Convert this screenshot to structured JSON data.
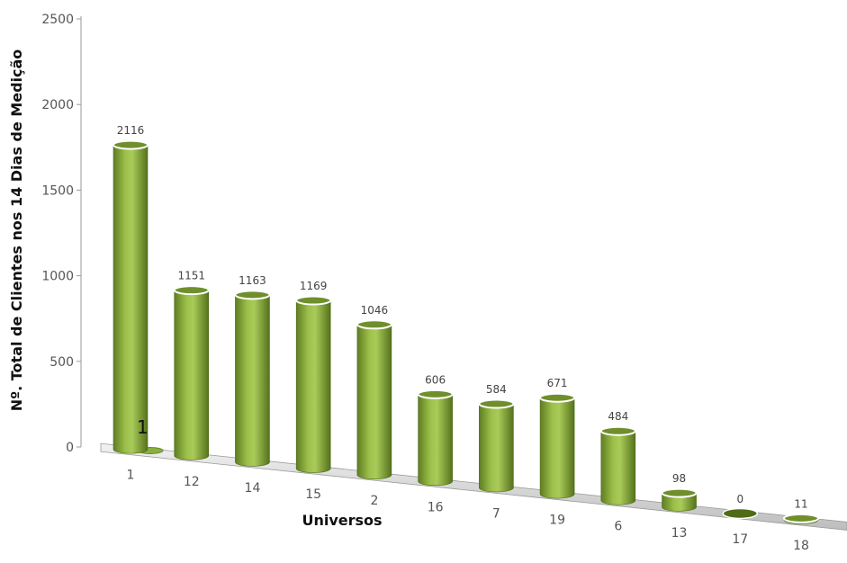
{
  "chart_data": {
    "type": "bar",
    "style": "3d-cylinder",
    "title": "",
    "xlabel": "Universos",
    "ylabel": "Nº. Total de Clientes nos 14 Dias de Medição",
    "ylim": [
      0,
      2500
    ],
    "yticks": [
      "0",
      "500",
      "1000",
      "1500",
      "2000",
      "2500"
    ],
    "categories": [
      "1",
      "12",
      "14",
      "15",
      "2",
      "16",
      "7",
      "19",
      "6",
      "13",
      "17",
      "18"
    ],
    "values": [
      2116,
      1151,
      1163,
      1169,
      1046,
      606,
      584,
      671,
      484,
      98,
      0,
      11
    ],
    "data_labels": [
      "2116",
      "1151",
      "1163",
      "1169",
      "1046",
      "606",
      "584",
      "671",
      "484",
      "98",
      "0",
      "11"
    ],
    "annotation": "1",
    "bar_color": "#8aae3f",
    "grid": false,
    "legend": "none"
  }
}
